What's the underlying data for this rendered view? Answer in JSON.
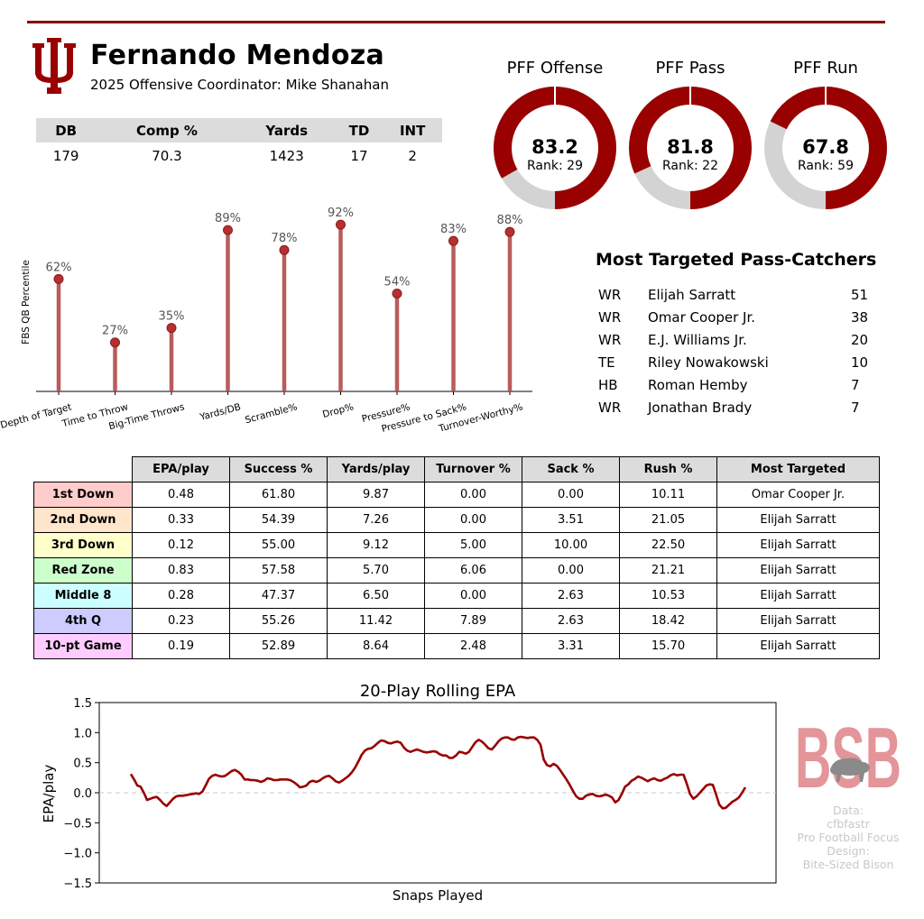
{
  "header": {
    "player_name": "Fernando Mendoza",
    "subtitle": "2025 Offensive Coordinator: Mike Shanahan"
  },
  "stats_table": {
    "headers": [
      "DB",
      "Comp %",
      "Yards",
      "TD",
      "INT"
    ],
    "values": [
      "179",
      "70.3",
      "1423",
      "17",
      "2"
    ]
  },
  "grades": [
    {
      "title": "PFF Offense",
      "value": "83.2",
      "rank": "Rank: 29",
      "grade": 83.2
    },
    {
      "title": "PFF Pass",
      "value": "81.8",
      "rank": "Rank: 22",
      "grade": 81.8
    },
    {
      "title": "PFF Run",
      "value": "67.8",
      "rank": "Rank: 59",
      "grade": 67.8
    }
  ],
  "most_targeted": {
    "title": "Most Targeted Pass-Catchers",
    "rows": [
      {
        "pos": "WR",
        "name": "Elijah Sarratt",
        "targets": "51"
      },
      {
        "pos": "WR",
        "name": "Omar Cooper Jr.",
        "targets": "38"
      },
      {
        "pos": "WR",
        "name": "E.J. Williams Jr.",
        "targets": "20"
      },
      {
        "pos": "TE",
        "name": "Riley Nowakowski",
        "targets": "10"
      },
      {
        "pos": "HB",
        "name": "Roman Hemby",
        "targets": "7"
      },
      {
        "pos": "WR",
        "name": "Jonathan Brady",
        "targets": "7"
      }
    ]
  },
  "situational": {
    "headers": [
      "EPA/play",
      "Success %",
      "Yards/play",
      "Turnover %",
      "Sack %",
      "Rush %",
      "Most Targeted"
    ],
    "rows": [
      {
        "label": "1st Down",
        "color": "#ffcccc",
        "cells": [
          "0.48",
          "61.80",
          "9.87",
          "0.00",
          "0.00",
          "10.11",
          "Omar Cooper Jr."
        ]
      },
      {
        "label": "2nd Down",
        "color": "#ffe5cc",
        "cells": [
          "0.33",
          "54.39",
          "7.26",
          "0.00",
          "3.51",
          "21.05",
          "Elijah Sarratt"
        ]
      },
      {
        "label": "3rd Down",
        "color": "#ffffcc",
        "cells": [
          "0.12",
          "55.00",
          "9.12",
          "5.00",
          "10.00",
          "22.50",
          "Elijah Sarratt"
        ]
      },
      {
        "label": "Red Zone",
        "color": "#ccffcc",
        "cells": [
          "0.83",
          "57.58",
          "5.70",
          "6.06",
          "0.00",
          "21.21",
          "Elijah Sarratt"
        ]
      },
      {
        "label": "Middle 8",
        "color": "#ccffff",
        "cells": [
          "0.28",
          "47.37",
          "6.50",
          "0.00",
          "2.63",
          "10.53",
          "Elijah Sarratt"
        ]
      },
      {
        "label": "4th Q",
        "color": "#ccccff",
        "cells": [
          "0.23",
          "55.26",
          "11.42",
          "7.89",
          "2.63",
          "18.42",
          "Elijah Sarratt"
        ]
      },
      {
        "label": "10-pt Game",
        "color": "#ffccff",
        "cells": [
          "0.19",
          "52.89",
          "8.64",
          "2.48",
          "3.31",
          "15.70",
          "Elijah Sarratt"
        ]
      }
    ]
  },
  "watermark": {
    "text": "BSB"
  },
  "credits": [
    "Data:",
    "cfbfastr",
    "Pro Football Focus",
    "Design:",
    "Bite-Sized Bison"
  ],
  "colors": {
    "primary": "#990000",
    "lollipop": "#b85c5c",
    "ring_bg": "#d3d3d3",
    "watermark": "#e3959a"
  },
  "chart_data": [
    {
      "type": "bar",
      "title": "",
      "ylabel": "FBS QB Percentile",
      "xlabel": "",
      "ylim": [
        0,
        100
      ],
      "categories": [
        "Depth of Target",
        "Time to Throw",
        "Big-Time Throws",
        "Yards/DB",
        "Scramble%",
        "Drop%",
        "Pressure%",
        "Pressure to Sack%",
        "Turnover-Worthy%"
      ],
      "values": [
        62,
        27,
        35,
        89,
        78,
        92,
        54,
        83,
        88
      ],
      "labels": [
        "62%",
        "27%",
        "35%",
        "89%",
        "78%",
        "92%",
        "54%",
        "83%",
        "88%"
      ]
    },
    {
      "type": "line",
      "title": "20-Play Rolling EPA",
      "xlabel": "Snaps Played",
      "ylabel": "EPA/play",
      "ylim": [
        -1.5,
        1.5
      ],
      "yticks": [
        "1.5",
        "1.0",
        "0.5",
        "0.0",
        "−0.5",
        "−1.0",
        "−1.5"
      ],
      "ytick_values": [
        1.5,
        1.0,
        0.5,
        0.0,
        -0.5,
        -1.0,
        -1.5
      ],
      "reference_line": 0,
      "y": [
        0.31,
        0.22,
        0.12,
        0.1,
        0.0,
        -0.12,
        -0.1,
        -0.08,
        -0.07,
        -0.12,
        -0.18,
        -0.22,
        -0.16,
        -0.1,
        -0.06,
        -0.05,
        -0.05,
        -0.04,
        -0.03,
        -0.02,
        -0.01,
        -0.02,
        0.02,
        0.12,
        0.23,
        0.28,
        0.3,
        0.28,
        0.27,
        0.28,
        0.32,
        0.36,
        0.38,
        0.35,
        0.3,
        0.22,
        0.22,
        0.21,
        0.21,
        0.2,
        0.18,
        0.2,
        0.24,
        0.23,
        0.21,
        0.21,
        0.22,
        0.22,
        0.22,
        0.21,
        0.18,
        0.14,
        0.09,
        0.1,
        0.12,
        0.18,
        0.2,
        0.18,
        0.2,
        0.24,
        0.27,
        0.28,
        0.24,
        0.19,
        0.17,
        0.2,
        0.24,
        0.28,
        0.34,
        0.42,
        0.52,
        0.63,
        0.7,
        0.73,
        0.74,
        0.78,
        0.83,
        0.87,
        0.86,
        0.83,
        0.82,
        0.84,
        0.85,
        0.83,
        0.75,
        0.7,
        0.68,
        0.7,
        0.72,
        0.7,
        0.68,
        0.67,
        0.68,
        0.69,
        0.68,
        0.64,
        0.62,
        0.62,
        0.58,
        0.58,
        0.62,
        0.68,
        0.67,
        0.65,
        0.68,
        0.76,
        0.84,
        0.88,
        0.85,
        0.8,
        0.74,
        0.72,
        0.78,
        0.85,
        0.9,
        0.92,
        0.92,
        0.89,
        0.88,
        0.92,
        0.93,
        0.92,
        0.91,
        0.92,
        0.92,
        0.88,
        0.8,
        0.55,
        0.46,
        0.44,
        0.48,
        0.45,
        0.38,
        0.3,
        0.22,
        0.13,
        0.03,
        -0.06,
        -0.1,
        -0.1,
        -0.05,
        -0.03,
        -0.02,
        -0.05,
        -0.06,
        -0.05,
        -0.03,
        -0.05,
        -0.08,
        -0.16,
        -0.12,
        -0.02,
        0.1,
        0.14,
        0.2,
        0.23,
        0.27,
        0.25,
        0.22,
        0.19,
        0.22,
        0.24,
        0.21,
        0.2,
        0.23,
        0.25,
        0.29,
        0.31,
        0.29,
        0.3,
        0.3,
        0.15,
        -0.02,
        -0.1,
        -0.06,
        0.0,
        0.06,
        0.12,
        0.14,
        0.13,
        -0.03,
        -0.2,
        -0.26,
        -0.25,
        -0.2,
        -0.15,
        -0.12,
        -0.08,
        0.0,
        0.09
      ]
    }
  ]
}
